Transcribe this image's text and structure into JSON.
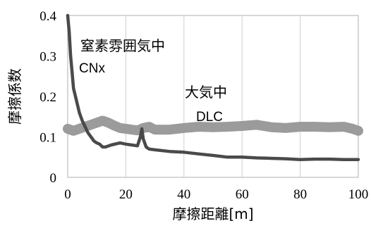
{
  "chart_data": {
    "type": "line",
    "title": "",
    "xlabel": "摩擦距離[m]",
    "ylabel": "摩擦係数",
    "xlim": [
      0,
      100
    ],
    "ylim": [
      0,
      0.4
    ],
    "x_ticks": [
      0,
      20,
      40,
      60,
      80,
      100
    ],
    "y_ticks": [
      0,
      0.1,
      0.2,
      0.3,
      0.4
    ],
    "x_tick_labels": [
      "0",
      "20",
      "40",
      "60",
      "80",
      "100"
    ],
    "y_tick_labels": [
      "0",
      "0.1",
      "0.2",
      "0.3",
      "0.4"
    ],
    "grid": "vertical",
    "annotations": [
      {
        "id": "cnx-env",
        "text": "窒素雰囲気中"
      },
      {
        "id": "cnx-name",
        "text": "CNx"
      },
      {
        "id": "dlc-env",
        "text": "大気中"
      },
      {
        "id": "dlc-name",
        "text": "DLC"
      }
    ],
    "series": [
      {
        "name": "CNx",
        "color": "#4a4a4a",
        "x": [
          0,
          0.5,
          1,
          1.5,
          2,
          3,
          4,
          5,
          6,
          7,
          8,
          9,
          10,
          11,
          12,
          13,
          15,
          18,
          20,
          22,
          24,
          25,
          25.5,
          26,
          27,
          28,
          30,
          35,
          40,
          45,
          50,
          55,
          60,
          65,
          70,
          75,
          80,
          85,
          90,
          95,
          100
        ],
        "y": [
          0.4,
          0.36,
          0.3,
          0.26,
          0.22,
          0.19,
          0.16,
          0.14,
          0.125,
          0.11,
          0.1,
          0.09,
          0.085,
          0.082,
          0.075,
          0.075,
          0.08,
          0.085,
          0.082,
          0.08,
          0.078,
          0.1,
          0.12,
          0.095,
          0.075,
          0.07,
          0.068,
          0.064,
          0.062,
          0.058,
          0.054,
          0.05,
          0.05,
          0.048,
          0.047,
          0.046,
          0.044,
          0.045,
          0.045,
          0.044,
          0.044
        ]
      },
      {
        "name": "DLC",
        "color": "#9b9b9b",
        "x": [
          0,
          2,
          4,
          6,
          8,
          10,
          12,
          14,
          16,
          18,
          20,
          22,
          24,
          26,
          28,
          30,
          35,
          40,
          45,
          50,
          55,
          60,
          65,
          70,
          75,
          80,
          85,
          90,
          95,
          98,
          100
        ],
        "y": [
          0.12,
          0.115,
          0.12,
          0.125,
          0.13,
          0.135,
          0.14,
          0.135,
          0.128,
          0.122,
          0.12,
          0.118,
          0.116,
          0.122,
          0.125,
          0.118,
          0.118,
          0.122,
          0.125,
          0.124,
          0.125,
          0.127,
          0.13,
          0.124,
          0.122,
          0.125,
          0.125,
          0.124,
          0.125,
          0.12,
          0.115
        ]
      }
    ]
  }
}
